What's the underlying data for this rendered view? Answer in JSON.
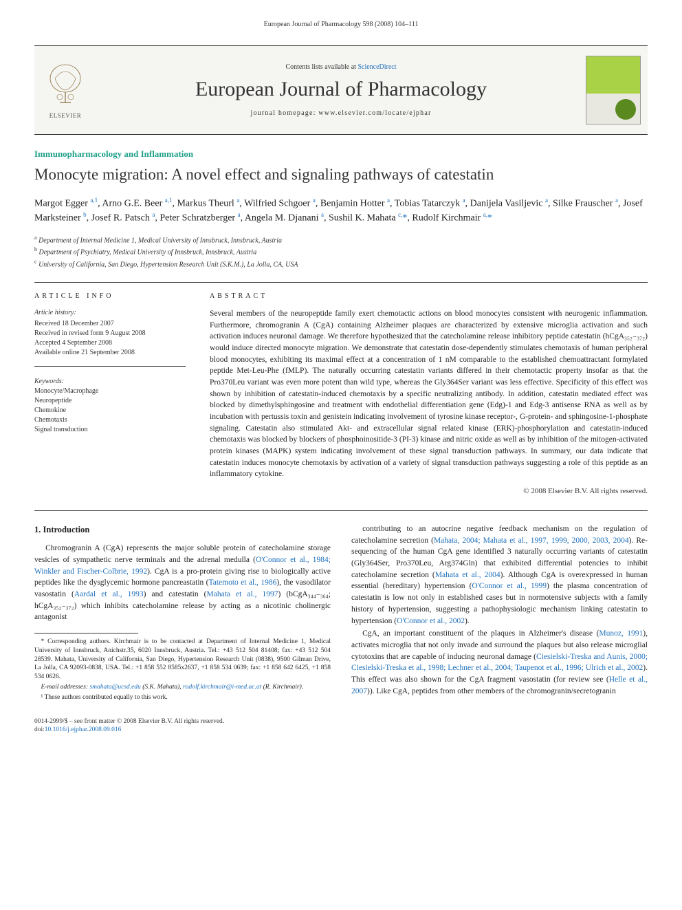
{
  "running_header": "European Journal of Pharmacology 598 (2008) 104–111",
  "banner": {
    "contents_prefix": "Contents lists available at ",
    "contents_link": "ScienceDirect",
    "journal_name": "European Journal of Pharmacology",
    "homepage_prefix": "journal homepage: ",
    "homepage_url": "www.elsevier.com/locate/ejphar",
    "elsevier_label": "ELSEVIER"
  },
  "section_label": "Immunopharmacology and Inflammation",
  "title": "Monocyte migration: A novel effect and signaling pathways of catestatin",
  "authors_html": "Margot Egger <sup>a,1</sup>, Arno G.E. Beer <sup>a,1</sup>, Markus Theurl <sup>a</sup>, Wilfried Schgoer <sup>a</sup>, Benjamin Hotter <sup>a</sup>, Tobias Tatarczyk <sup>a</sup>, Danijela Vasiljevic <sup>a</sup>, Silke Frauscher <sup>a</sup>, Josef Marksteiner <sup>b</sup>, Josef R. Patsch <sup>a</sup>, Peter Schratzberger <sup>a</sup>, Angela M. Djanani <sup>a</sup>, Sushil K. Mahata <sup>c,</sup><span class='ast'>*</span>, Rudolf Kirchmair <sup>a,</sup><span class='ast'>*</span>",
  "affiliations": {
    "a": "Department of Internal Medicine 1, Medical University of Innsbruck, Innsbruck, Austria",
    "b": "Department of Psychiatry, Medical University of Innsbruck, Innsbruck, Austria",
    "c": "University of California, San Diego, Hypertension Research Unit (S.K.M.), La Jolla, CA, USA"
  },
  "article_info": {
    "heading": "article info",
    "history_label": "Article history:",
    "history": [
      "Received 18 December 2007",
      "Received in revised form 9 August 2008",
      "Accepted 4 September 2008",
      "Available online 21 September 2008"
    ],
    "keywords_label": "Keywords:",
    "keywords": [
      "Monocyte/Macrophage",
      "Neuropeptide",
      "Chemokine",
      "Chemotaxis",
      "Signal transduction"
    ]
  },
  "abstract": {
    "heading": "abstract",
    "text": "Several members of the neuropeptide family exert chemotactic actions on blood monocytes consistent with neurogenic inflammation. Furthermore, chromogranin A (CgA) containing Alzheimer plaques are characterized by extensive microglia activation and such activation induces neuronal damage. We therefore hypothesized that the catecholamine release inhibitory peptide catestatin (hCgA₃₅₂₋₃₇₂) would induce directed monocyte migration. We demonstrate that catestatin dose-dependently stimulates chemotaxis of human peripheral blood monocytes, exhibiting its maximal effect at a concentration of 1 nM comparable to the established chemoattractant formylated peptide Met-Leu-Phe (fMLP). The naturally occurring catestatin variants differed in their chemotactic property insofar as that the Pro370Leu variant was even more potent than wild type, whereas the Gly364Ser variant was less effective. Specificity of this effect was shown by inhibition of catestatin-induced chemotaxis by a specific neutralizing antibody. In addition, catestatin mediated effect was blocked by dimethylsphingosine and treatment with endothelial differentiation gene (Edg)-1 and Edg-3 antisense RNA as well as by incubation with pertussis toxin and genistein indicating involvement of tyrosine kinase receptor-, G-protein- and sphingosine-1-phosphate signaling. Catestatin also stimulated Akt- and extracellular signal related kinase (ERK)-phosphorylation and catestatin-induced chemotaxis was blocked by blockers of phosphoinositide-3 (PI-3) kinase and nitric oxide as well as by inhibition of the mitogen-activated protein kinases (MAPK) system indicating involvement of these signal transduction pathways. In summary, our data indicate that catestatin induces monocyte chemotaxis by activation of a variety of signal transduction pathways suggesting a role of this peptide as an inflammatory cytokine.",
    "copyright": "© 2008 Elsevier B.V. All rights reserved."
  },
  "intro": {
    "heading": "1. Introduction",
    "p1_pre": "Chromogranin A (CgA) represents the major soluble protein of catecholamine storage vesicles of sympathetic nerve terminals and the adrenal medulla (",
    "p1_link1": "O'Connor et al., 1984; Winkler and Fischer-Colbrie, 1992",
    "p1_mid1": "). CgA is a pro-protein giving rise to biologically active peptides like the dysglycemic hormone pancreastatin (",
    "p1_link2": "Tatemoto et al., 1986",
    "p1_mid2": "), the vasodilator vasostatin (",
    "p1_link3": "Aardal et al., 1993",
    "p1_mid3": ") and catestatin (",
    "p1_link4": "Mahata et al., 1997",
    "p1_mid4": ") (bCgA₃₄₄₋₃₆₄; hCgA₃₅₂₋₃₇₂) which inhibits catecholamine release by acting as a nicotinic cholinergic antagonist",
    "p2_pre": "contributing to an autocrine negative feedback mechanism on the regulation of catecholamine secretion (",
    "p2_link1": "Mahata, 2004; Mahata et al., 1997, 1999, 2000, 2003, 2004",
    "p2_mid1": "). Re-sequencing of the human CgA gene identified 3 naturally occurring variants of catestatin (Gly364Ser, Pro370Leu, Arg374Gln) that exhibited differential potencies to inhibit catecholamine secretion (",
    "p2_link2": "Mahata et al., 2004",
    "p2_mid2": "). Although CgA is overexpressed in human essential (hereditary) hypertension (",
    "p2_link3": "O'Connor et al., 1999",
    "p2_mid3": ") the plasma concentration of catestatin is low not only in established cases but in normotensive subjects with a family history of hypertension, suggesting a pathophysiologic mechanism linking catestatin to hypertension (",
    "p2_link4": "O'Connor et al., 2002",
    "p2_end": ").",
    "p3_pre": "CgA, an important constituent of the plaques in Alzheimer's disease (",
    "p3_link1": "Munoz, 1991",
    "p3_mid1": "), activates microglia that not only invade and surround the plaques but also release microglial cytotoxins that are capable of inducing neuronal damage (",
    "p3_link2": "Ciesielski-Treska and Aunis, 2000; Ciesielski-Treska et al., 1998; Lechner et al., 2004; Taupenot et al., 1996; Ulrich et al., 2002",
    "p3_mid2": "). This effect was also shown for the CgA fragment vasostatin (for review see (",
    "p3_link3": "Helle et al., 2007",
    "p3_end": ")). Like CgA, peptides from other members of the chromogranin/secretogranin"
  },
  "footnotes": {
    "corr": "* Corresponding authors. Kirchmair is to be contacted at Department of Internal Medicine 1, Medical University of Innsbruck, Anichstr.35, 6020 Innsbruck, Austria. Tel.: +43 512 504 81408; fax: +43 512 504 28539. Mahata, University of California, San Diego, Hypertension Research Unit (0838), 9500 Gilman Drive, La Jolla, CA 92093-0838, USA. Tel.: +1 858 552 8585x2637, +1 858 534 0639; fax: +1 858 642 6425, +1 858 534 0626.",
    "email_label": "E-mail addresses: ",
    "email1": "smahata@ucsd.edu",
    "email1_who": " (S.K. Mahata), ",
    "email2": "rudolf.kirchmair@i-med.ac.at",
    "email2_who": " (R. Kirchmair).",
    "note1": "¹ These authors contributed equally to this work."
  },
  "bottom": {
    "line1": "0014-2999/$ – see front matter © 2008 Elsevier B.V. All rights reserved.",
    "doi_label": "doi:",
    "doi": "10.1016/j.ejphar.2008.09.016"
  },
  "colors": {
    "link": "#1d6fbb",
    "section": "#1fa089",
    "text": "#222222",
    "rule": "#333333",
    "banner_bg": "#f5f5f2",
    "cover_green": "#a9d246",
    "cover_dark": "#5a8a1f"
  },
  "typography": {
    "body_pt": 11.5,
    "title_pt": 23,
    "journal_pt": 30,
    "authors_pt": 14,
    "small_pt": 10,
    "footnote_pt": 9.5
  }
}
